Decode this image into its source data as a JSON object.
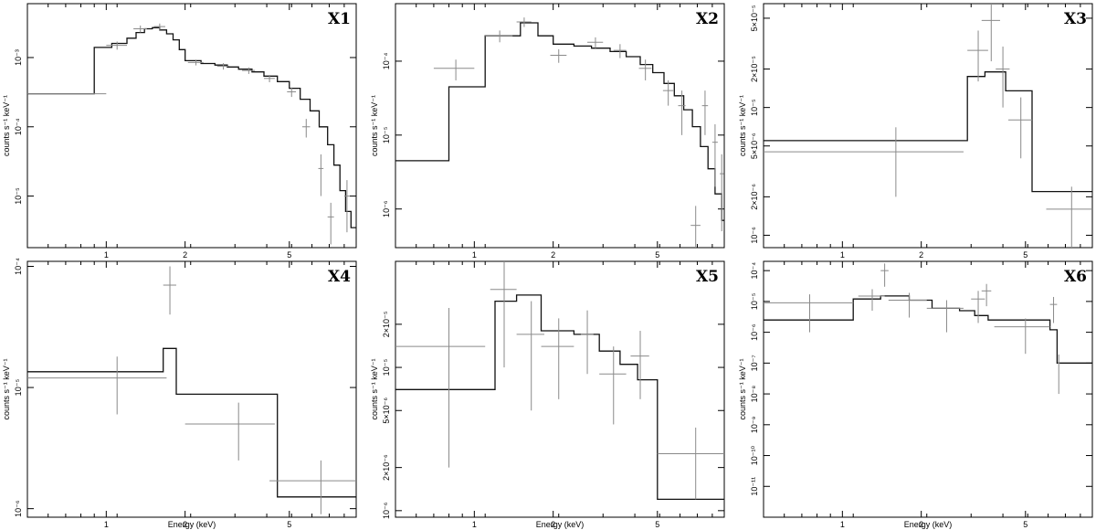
{
  "figure": {
    "ylabel": "counts s⁻¹ keV⁻¹",
    "xlabel": "Energy (keV)"
  },
  "chart_data": [
    {
      "type": "line",
      "title": "X1",
      "xscale": "log",
      "yscale": "log",
      "xlim": [
        0.5,
        9.0
      ],
      "ylim": [
        1.8e-06,
        0.006
      ],
      "xticks": [
        1,
        2,
        5
      ],
      "xticklabels": [
        "1",
        "2",
        "5"
      ],
      "yticks": [
        1e-05,
        0.0001,
        0.001
      ],
      "yticklabels": [
        "10⁻⁵",
        "10⁻⁴",
        "10⁻³"
      ],
      "model_steps": [
        [
          0.5,
          0.0003
        ],
        [
          0.9,
          0.0014
        ],
        [
          1.05,
          0.0016
        ],
        [
          1.2,
          0.0019
        ],
        [
          1.3,
          0.0023
        ],
        [
          1.4,
          0.0026
        ],
        [
          1.5,
          0.0027
        ],
        [
          1.6,
          0.0025
        ],
        [
          1.7,
          0.0022
        ],
        [
          1.8,
          0.0018
        ],
        [
          1.9,
          0.0013
        ],
        [
          2.0,
          0.0009
        ],
        [
          2.3,
          0.00082
        ],
        [
          2.6,
          0.00078
        ],
        [
          2.9,
          0.00073
        ],
        [
          3.2,
          0.00068
        ],
        [
          3.6,
          0.00062
        ],
        [
          4.0,
          0.00054
        ],
        [
          4.5,
          0.00045
        ],
        [
          5.0,
          0.00036
        ],
        [
          5.5,
          0.00025
        ],
        [
          6.0,
          0.00017
        ],
        [
          6.5,
          0.0001
        ],
        [
          7.0,
          5.5e-05
        ],
        [
          7.4,
          2.8e-05
        ],
        [
          7.8,
          1.2e-05
        ],
        [
          8.2,
          6e-06
        ],
        [
          8.6,
          3.5e-06
        ],
        [
          9.0,
          2e-06
        ]
      ],
      "data": [
        [
          0.75,
          0.0003,
          0.25,
          0.0
        ],
        [
          1.1,
          0.0015,
          0.1,
          0.0002
        ],
        [
          1.35,
          0.0026,
          0.08,
          0.0003
        ],
        [
          1.6,
          0.0028,
          0.08,
          0.0003
        ],
        [
          2.2,
          0.00085,
          0.15,
          8e-05
        ],
        [
          2.8,
          0.00075,
          0.15,
          8e-05
        ],
        [
          3.5,
          0.00065,
          0.2,
          7e-05
        ],
        [
          4.2,
          0.0005,
          0.2,
          6e-05
        ],
        [
          5.1,
          0.00032,
          0.2,
          5e-05
        ],
        [
          5.8,
          0.0001,
          0.2,
          3e-05
        ],
        [
          6.6,
          2.5e-05,
          0.15,
          1.5e-05
        ],
        [
          7.2,
          5e-06,
          0.2,
          3e-06
        ],
        [
          8.3,
          1e-05,
          0.2,
          7e-06
        ]
      ]
    },
    {
      "type": "line",
      "title": "X2",
      "xscale": "log",
      "yscale": "log",
      "xlim": [
        0.5,
        9.0
      ],
      "ylim": [
        3e-07,
        0.0006
      ],
      "xticks": [
        1,
        2,
        5
      ],
      "xticklabels": [
        "1",
        "2",
        "5"
      ],
      "yticks": [
        1e-06,
        1e-05,
        0.0001
      ],
      "yticklabels": [
        "10⁻⁶",
        "10⁻⁵",
        "10⁻⁴"
      ],
      "model_steps": [
        [
          0.5,
          4.5e-06
        ],
        [
          0.8,
          4.5e-05
        ],
        [
          1.1,
          0.00022
        ],
        [
          1.5,
          0.00033
        ],
        [
          1.75,
          0.00022
        ],
        [
          2.0,
          0.00017
        ],
        [
          2.4,
          0.00016
        ],
        [
          2.8,
          0.00015
        ],
        [
          3.3,
          0.000135
        ],
        [
          3.8,
          0.000115
        ],
        [
          4.3,
          9e-05
        ],
        [
          4.8,
          7e-05
        ],
        [
          5.3,
          5e-05
        ],
        [
          5.8,
          3.4e-05
        ],
        [
          6.3,
          2.2e-05
        ],
        [
          6.8,
          1.3e-05
        ],
        [
          7.3,
          7e-06
        ],
        [
          7.8,
          3.5e-06
        ],
        [
          8.3,
          1.6e-06
        ],
        [
          8.8,
          7e-07
        ],
        [
          9.0,
          4e-07
        ]
      ],
      "data": [
        [
          0.85,
          8e-05,
          0.15,
          2.5e-05
        ],
        [
          1.25,
          0.00022,
          0.15,
          4e-05
        ],
        [
          1.55,
          0.00034,
          0.1,
          5e-05
        ],
        [
          2.1,
          0.00012,
          0.15,
          2.5e-05
        ],
        [
          2.9,
          0.00018,
          0.2,
          3e-05
        ],
        [
          3.6,
          0.00014,
          0.2,
          3e-05
        ],
        [
          4.5,
          8e-05,
          0.25,
          2.5e-05
        ],
        [
          5.5,
          4e-05,
          0.25,
          1.5e-05
        ],
        [
          6.2,
          2.5e-05,
          0.2,
          1.5e-05
        ],
        [
          7.0,
          6e-07,
          0.3,
          5e-07
        ],
        [
          7.6,
          2.5e-05,
          0.2,
          1.5e-05
        ],
        [
          8.3,
          8e-06,
          0.2,
          6e-06
        ],
        [
          8.8,
          3e-06,
          0.15,
          2.5e-06
        ]
      ]
    },
    {
      "type": "line",
      "title": "X3",
      "xscale": "log",
      "yscale": "log",
      "xlim": [
        0.5,
        9.0
      ],
      "ylim": [
        8e-07,
        6.5e-05
      ],
      "xticks": [
        1,
        2,
        5
      ],
      "xticklabels": [
        "1",
        "2",
        "5"
      ],
      "yticks": [
        1e-06,
        2e-06,
        5e-06,
        1e-05,
        2e-05,
        5e-05
      ],
      "yticklabels": [
        "10⁻⁶",
        "2×10⁻⁶",
        "5×10⁻⁶",
        "10⁻⁵",
        "2×10⁻⁵",
        "5×10⁻⁵"
      ],
      "model_steps": [
        [
          0.5,
          5.5e-06
        ],
        [
          3.0,
          1.75e-05
        ],
        [
          3.5,
          1.9e-05
        ],
        [
          4.2,
          1.35e-05
        ],
        [
          5.3,
          2.2e-06
        ],
        [
          9.0,
          2.2e-06
        ]
      ],
      "data": [
        [
          1.6,
          4.5e-06,
          1.3,
          2.5e-06
        ],
        [
          3.3,
          2.8e-05,
          0.3,
          1.2e-05
        ],
        [
          3.7,
          4.8e-05,
          0.3,
          2.5e-05
        ],
        [
          4.1,
          2e-05,
          0.25,
          1e-05
        ],
        [
          4.8,
          8e-06,
          0.5,
          4e-06
        ],
        [
          7.5,
          1.6e-06,
          1.5,
          8e-07
        ]
      ]
    },
    {
      "type": "line",
      "title": "X4",
      "xscale": "log",
      "yscale": "log",
      "xlim": [
        0.5,
        9.0
      ],
      "ylim": [
        8.5e-07,
        0.00011
      ],
      "xticks": [
        1,
        2,
        5
      ],
      "xticklabels": [
        "1",
        "2",
        "5"
      ],
      "yticks": [
        1e-06,
        1e-05,
        0.0001
      ],
      "yticklabels": [
        "10⁻⁶",
        "10⁻⁵",
        "10⁻⁴"
      ],
      "model_steps": [
        [
          0.5,
          1.35e-05
        ],
        [
          1.65,
          2.1e-05
        ],
        [
          1.85,
          8.8e-06
        ],
        [
          4.5,
          1.25e-06
        ],
        [
          9.0,
          1.25e-06
        ]
      ],
      "data": [
        [
          1.1,
          1.2e-05,
          0.6,
          6e-06
        ],
        [
          1.75,
          7e-05,
          0.1,
          3e-05
        ],
        [
          3.2,
          5e-06,
          1.2,
          2.5e-06
        ],
        [
          6.6,
          1.7e-06,
          2.4,
          8e-07
        ]
      ]
    },
    {
      "type": "line",
      "title": "X5",
      "xscale": "log",
      "yscale": "log",
      "xlim": [
        0.5,
        9.0
      ],
      "ylim": [
        9e-07,
        5.5e-05
      ],
      "xticks": [
        1,
        2,
        5
      ],
      "xticklabels": [
        "1",
        "2",
        "5"
      ],
      "yticks": [
        1e-06,
        2e-06,
        5e-06,
        1e-05,
        2e-05
      ],
      "yticklabels": [
        "10⁻⁶",
        "2×10⁻⁶",
        "5×10⁻⁶",
        "10⁻⁵",
        "2×10⁻⁵"
      ],
      "model_steps": [
        [
          0.5,
          7e-06
        ],
        [
          1.2,
          2.9e-05
        ],
        [
          1.45,
          3.2e-05
        ],
        [
          1.8,
          1.8e-05
        ],
        [
          2.4,
          1.7e-05
        ],
        [
          3.0,
          1.3e-05
        ],
        [
          3.6,
          1.05e-05
        ],
        [
          4.2,
          8.2e-06
        ],
        [
          5.0,
          1.2e-06
        ],
        [
          9.0,
          1.2e-06
        ]
      ],
      "data": [
        [
          0.8,
          1.4e-05,
          0.3,
          1.2e-05
        ],
        [
          1.3,
          3.5e-05,
          0.15,
          2.5e-05
        ],
        [
          1.65,
          1.7e-05,
          0.2,
          1.2e-05
        ],
        [
          2.1,
          1.4e-05,
          0.3,
          8e-06
        ],
        [
          2.7,
          1.7e-05,
          0.15,
          8e-06
        ],
        [
          3.4,
          9e-06,
          0.4,
          5e-06
        ],
        [
          4.3,
          1.2e-05,
          0.35,
          6e-06
        ],
        [
          7.0,
          2.5e-06,
          2.0,
          1.3e-06
        ]
      ]
    },
    {
      "type": "line",
      "title": "X6",
      "xscale": "log",
      "yscale": "log",
      "xlim": [
        0.5,
        9.0
      ],
      "ylim": [
        1e-12,
        0.0002
      ],
      "xticks": [
        1,
        2,
        5
      ],
      "xticklabels": [
        "1",
        "2",
        "5"
      ],
      "yticks": [
        1e-11,
        1e-10,
        1e-09,
        1e-08,
        1e-07,
        1e-06,
        1e-05,
        0.0001
      ],
      "yticklabels": [
        "10⁻¹¹",
        "10⁻¹⁰",
        "10⁻⁹",
        "10⁻⁸",
        "10⁻⁷",
        "10⁻⁶",
        "10⁻⁵",
        "10⁻⁴"
      ],
      "model_steps": [
        [
          0.5,
          2.5e-06
        ],
        [
          1.1,
          1.2e-05
        ],
        [
          1.4,
          1.5e-05
        ],
        [
          1.8,
          1.1e-05
        ],
        [
          2.2,
          6e-06
        ],
        [
          2.8,
          5e-06
        ],
        [
          3.2,
          3.5e-06
        ],
        [
          3.6,
          2.5e-06
        ],
        [
          6.2,
          1.2e-06
        ],
        [
          6.6,
          1e-07
        ],
        [
          9.0,
          1e-07
        ]
      ],
      "data": [
        [
          0.75,
          9e-06,
          0.35,
          8e-06
        ],
        [
          1.3,
          1.5e-05,
          0.15,
          1e-05
        ],
        [
          1.45,
          0.0001,
          0.05,
          7e-05
        ],
        [
          1.8,
          1.1e-05,
          0.3,
          8e-06
        ],
        [
          2.5,
          6e-06,
          0.4,
          5e-06
        ],
        [
          3.3,
          1.2e-05,
          0.2,
          1e-05
        ],
        [
          3.55,
          2.2e-05,
          0.15,
          1.5e-05
        ],
        [
          5.0,
          1.5e-06,
          1.2,
          1.3e-06
        ],
        [
          6.4,
          8e-06,
          0.2,
          6e-06
        ],
        [
          6.7,
          1e-07,
          0.05,
          9e-08
        ]
      ]
    }
  ]
}
